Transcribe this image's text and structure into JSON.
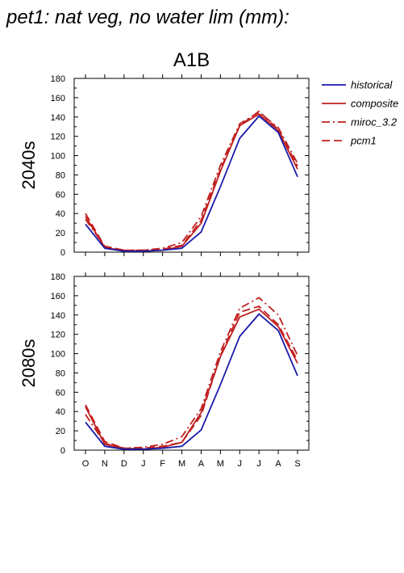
{
  "page_title": "pet1: nat veg, no water lim (mm):",
  "chart_data": {
    "type": "line",
    "title": "A1B",
    "categories": [
      "O",
      "N",
      "D",
      "J",
      "F",
      "M",
      "A",
      "M",
      "J",
      "J",
      "A",
      "S"
    ],
    "ylim": [
      0,
      180
    ],
    "yticks": [
      0,
      20,
      40,
      60,
      80,
      100,
      120,
      140,
      160,
      180
    ],
    "grid": false,
    "legend_position": "right",
    "legend": [
      {
        "name": "historical",
        "color": "#1a1aaa",
        "dash": "solid"
      },
      {
        "name": "composite",
        "color": "#c02020",
        "dash": "solid"
      },
      {
        "name": "miroc_3.2",
        "color": "#c02020",
        "dash": "dashdot"
      },
      {
        "name": "pcm1",
        "color": "#c02020",
        "dash": "dashed"
      }
    ],
    "panels": [
      {
        "label": "2040s",
        "series": [
          {
            "name": "historical",
            "values": [
              29,
              4,
              1,
              1,
              2,
              4,
              21,
              68,
              118,
              141,
              124,
              78
            ]
          },
          {
            "name": "composite",
            "values": [
              37,
              5,
              1,
              1,
              2,
              6,
              30,
              84,
              131,
              143,
              126,
              86
            ]
          },
          {
            "name": "miroc_3.2",
            "values": [
              34,
              6,
              2,
              2,
              4,
              10,
              37,
              90,
              133,
              145,
              129,
              92
            ]
          },
          {
            "name": "pcm1",
            "values": [
              40,
              6,
              2,
              2,
              3,
              7,
              33,
              86,
              131,
              146,
              127,
              89
            ]
          }
        ]
      },
      {
        "label": "2080s",
        "series": [
          {
            "name": "historical",
            "values": [
              29,
              4,
              1,
              1,
              2,
              4,
              21,
              68,
              118,
              141,
              124,
              77
            ]
          },
          {
            "name": "composite",
            "values": [
              45,
              6,
              2,
              1,
              3,
              8,
              39,
              97,
              138,
              146,
              128,
              90
            ]
          },
          {
            "name": "miroc_3.2",
            "values": [
              37,
              7,
              2,
              3,
              6,
              14,
              43,
              102,
              147,
              158,
              140,
              98
            ]
          },
          {
            "name": "pcm1",
            "values": [
              47,
              9,
              2,
              2,
              4,
              8,
              36,
              98,
              143,
              149,
              130,
              93
            ]
          }
        ]
      }
    ]
  }
}
